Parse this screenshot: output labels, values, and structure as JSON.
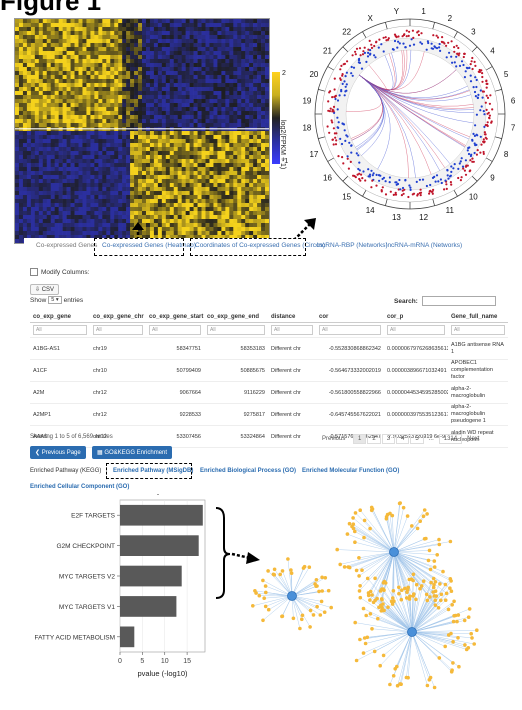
{
  "figure_title": "Figure 1",
  "colorbar": {
    "label": "log2(FPKM + 1)",
    "min": "-1",
    "max": "2"
  },
  "circos": {
    "chromosomes": [
      "1",
      "2",
      "3",
      "4",
      "5",
      "6",
      "7",
      "8",
      "9",
      "10",
      "11",
      "12",
      "13",
      "14",
      "15",
      "16",
      "17",
      "18",
      "19",
      "20",
      "21",
      "22",
      "X",
      "Y"
    ]
  },
  "tabs": [
    {
      "label": "Co-expressed Genes"
    },
    {
      "label": "Co-expressed Genes (Heatmap)"
    },
    {
      "label": "Coordinates of Co-expressed Genes (Circos)"
    },
    {
      "label": "lncRNA-RBP (Networks)"
    },
    {
      "label": "lncRNA-mRNA (Networks)"
    }
  ],
  "controls": {
    "modify_columns": "Modify Columns:",
    "csv": "CSV",
    "show": "Show",
    "page_size": "5",
    "entries": "entries",
    "search_label": "Search:",
    "search_value": ""
  },
  "table": {
    "columns": [
      "co_exp_gene",
      "co_exp_gene_chr",
      "co_exp_gene_start",
      "co_exp_gene_end",
      "distance",
      "cor",
      "cor_p",
      "Gene_full_name"
    ],
    "filter_placeholder": "All",
    "rows": [
      [
        "A1BG-AS1",
        "chr19",
        "58347751",
        "58353183",
        "Different chr",
        "-0.552830868862342",
        "0.0000067976268635613",
        "A1BG antisense RNA 1"
      ],
      [
        "A1CF",
        "chr10",
        "50799409",
        "50885675",
        "Different chr",
        "-0.564673332002019",
        "0.000003896671032491",
        "APOBEC1 complementation factor"
      ],
      [
        "A2M",
        "chr12",
        "9067664",
        "9116229",
        "Different chr",
        "-0.561800558822966",
        "0.00000445345952850025",
        "alpha-2-macroglobulin"
      ],
      [
        "A2MP1",
        "chr12",
        "9228533",
        "9275817",
        "Different chr",
        "-0.645745567622021",
        "0.000000397553512361779",
        "alpha-2-macroglobulin pseudogene 1"
      ],
      [
        "AAAS",
        "chr12",
        "53307456",
        "53324864",
        "Different chr",
        "0.571576616562547",
        "7.9032523720919 6e-9",
        "aladin WD repeat nucleoporin"
      ]
    ]
  },
  "pagination": {
    "summary": "Showing 1 to 5 of 6,569 entries",
    "previous": "Previous",
    "pages": [
      "1",
      "2",
      "3",
      "4",
      "5",
      "...",
      "1314"
    ],
    "next": "Next"
  },
  "buttons": {
    "previous_page": "Previous Page",
    "enrichment": "GO&KEGG Enrichment"
  },
  "enrichment_tabs": [
    {
      "label": "Enriched Pathway (KEGG)"
    },
    {
      "label": "Enriched Pathway (MSigDB)"
    },
    {
      "label": "Enriched Biological Process (GO)"
    },
    {
      "label": "Enriched Molecular Function (GO)"
    },
    {
      "label": "Enriched Cellular Component (GO)"
    }
  ],
  "chart_data": {
    "type": "bar",
    "orientation": "horizontal",
    "categories": [
      "E2F TARGETS",
      "G2M CHECKPOINT",
      "MYC TARGETS V2",
      "MYC TARGETS V1",
      "FATTY ACID METABOLISM"
    ],
    "values": [
      18.5,
      17.6,
      13.8,
      12.6,
      3.2
    ],
    "xlabel": "pvalue (-log10)",
    "ylabel": "",
    "xlim": [
      0,
      19
    ],
    "xticks": [
      0,
      5,
      10,
      15
    ],
    "bar_color": "#595959"
  },
  "colors": {
    "heat_high": "#f5d21c",
    "heat_low": "#2b2f9e",
    "link_blue": "#3a6fb0",
    "button_blue": "#2b6cb0",
    "net_hub": "#4a90d9",
    "net_leaf": "#f5b93a"
  }
}
